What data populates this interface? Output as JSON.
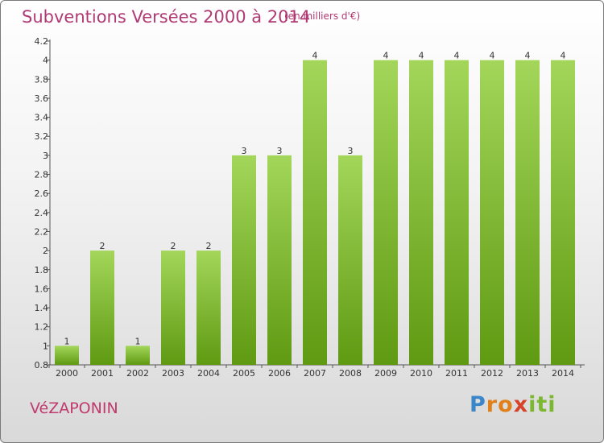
{
  "header": {
    "title": "Subventions Versées 2000 à 2014",
    "unit": "(en milliers d'€)"
  },
  "footer": {
    "commune": "VéZAPONIN",
    "brand": [
      "P",
      "r",
      "o",
      "x",
      "i",
      "t",
      "i"
    ]
  },
  "colors": {
    "title": "#b03a73",
    "bar_top": "#a3d65a",
    "bar_bottom": "#5f9a12",
    "brand_palette": [
      "#3a86c8",
      "#e0801a",
      "#7cb82f",
      "#d6422a"
    ]
  },
  "chart_data": {
    "type": "bar",
    "title": "Subventions Versées 2000 à 2014",
    "categories": [
      "2000",
      "2001",
      "2002",
      "2003",
      "2004",
      "2005",
      "2006",
      "2007",
      "2008",
      "2009",
      "2010",
      "2011",
      "2012",
      "2013",
      "2014"
    ],
    "values": [
      1,
      2,
      1,
      2,
      2,
      3,
      3,
      4,
      3,
      4,
      4,
      4,
      4,
      4,
      4
    ],
    "data_labels": [
      "1",
      "2",
      "1",
      "2",
      "2",
      "3",
      "3",
      "4",
      "3",
      "4",
      "4",
      "4",
      "4",
      "4",
      "4"
    ],
    "ylim": [
      0.8,
      4.2
    ],
    "yticks": [
      "0.8",
      "1",
      "1.2",
      "1.4",
      "1.6",
      "1.8",
      "2",
      "2.2",
      "2.4",
      "2.6",
      "2.8",
      "3",
      "3.2",
      "3.4",
      "3.6",
      "3.8",
      "4",
      "4.2"
    ],
    "grid": false,
    "legend": "none"
  }
}
